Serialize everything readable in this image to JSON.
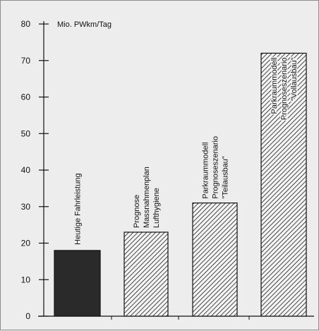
{
  "chart_data": {
    "type": "bar",
    "title": "",
    "ylabel": "Mio. PWkm/Tag",
    "xlabel": "",
    "ylim": [
      0,
      80
    ],
    "yticks": [
      0,
      10,
      20,
      30,
      40,
      50,
      60,
      70,
      80
    ],
    "categories": [
      [
        "Heutige Fahrleistung"
      ],
      [
        "Prognose",
        "Massnahmenplan",
        "Lufthygiene"
      ],
      [
        "Parkraummodell",
        "Prognoseszenario",
        "\"Teilausbau\""
      ],
      [
        "Parkraummodell",
        "Prognoseszenario",
        "\"Vollausbau\""
      ]
    ],
    "values": [
      18,
      23,
      31,
      72
    ],
    "fills": [
      "solid",
      "hatched",
      "hatched",
      "hatched"
    ],
    "grid": false,
    "legend": "none"
  },
  "colors": {
    "solid_bar": "#2a2a2a",
    "hatch_line": "#1a1a1a",
    "axis": "#111111",
    "background": "#ededed"
  }
}
